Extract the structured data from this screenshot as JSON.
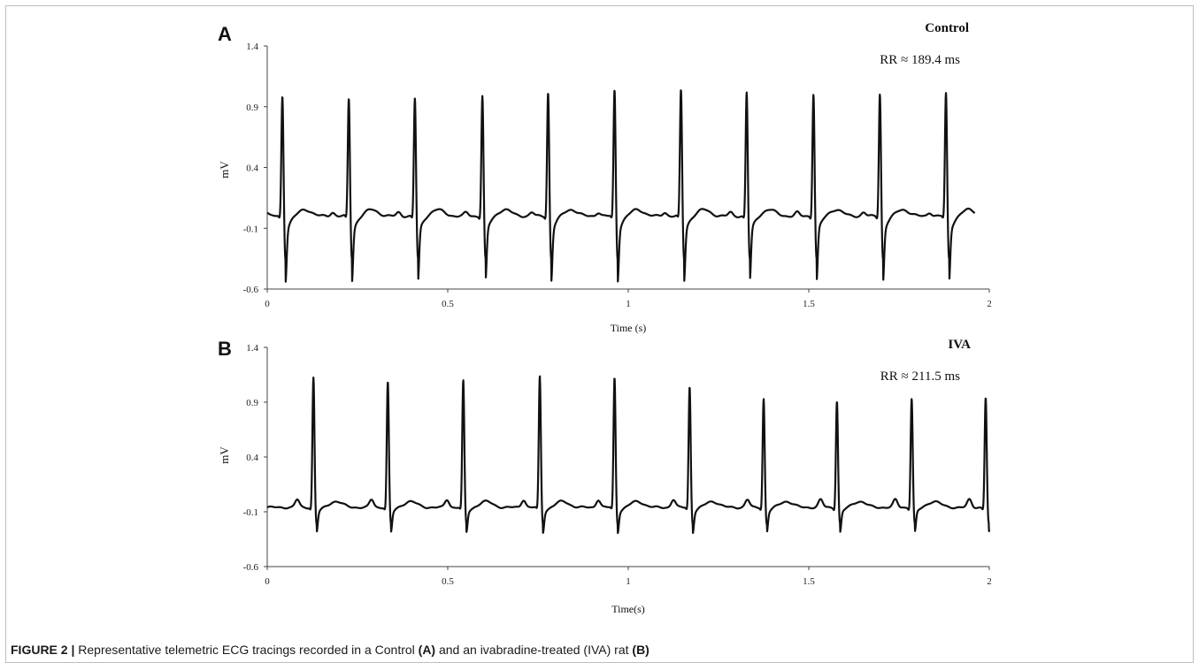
{
  "figure": {
    "label": "FIGURE 2 |",
    "caption_parts": [
      {
        "text": " Representative telemetric ECG tracings recorded in a Control ",
        "bold": false
      },
      {
        "text": "(A)",
        "bold": true
      },
      {
        "text": " and an ivabradine-treated (IVA) rat ",
        "bold": false
      },
      {
        "text": "(B)",
        "bold": true
      }
    ]
  },
  "chart_data": [
    {
      "type": "line",
      "panel_label": "A",
      "title": "Control",
      "annotation": "RR ≈ 189.4 ms",
      "xlabel": "Time  (s)",
      "ylabel": "mV",
      "xlim": [
        0,
        2
      ],
      "ylim": [
        -0.6,
        1.4
      ],
      "xticks": [
        0,
        0.5,
        1,
        1.5,
        2
      ],
      "xtick_labels": [
        "0",
        "0.5",
        "1",
        "1.5",
        "2"
      ],
      "yticks": [
        -0.6,
        -0.1,
        0.4,
        0.9,
        1.4
      ],
      "ytick_labels": [
        "-0.6",
        "-0.1",
        "0.4",
        "0.9",
        "1.4"
      ],
      "grid": false,
      "trace_end_s": 1.96,
      "baseline_mV": 0.0,
      "r_peak_times_s": [
        0.042,
        0.226,
        0.409,
        0.596,
        0.778,
        0.962,
        1.146,
        1.328,
        1.513,
        1.697,
        1.88
      ],
      "r_peak_amplitudes_mV": [
        1.0,
        0.98,
        0.98,
        1.0,
        1.03,
        1.05,
        1.05,
        1.03,
        1.02,
        1.02,
        1.02
      ],
      "s_trough_mV": -0.34,
      "color": "#111111"
    },
    {
      "type": "line",
      "panel_label": "B",
      "title": "IVA",
      "annotation": "RR ≈ 211.5 ms",
      "xlabel": "Time(s)",
      "ylabel": "mV",
      "xlim": [
        0,
        2
      ],
      "ylim": [
        -0.6,
        1.4
      ],
      "xticks": [
        0,
        0.5,
        1,
        1.5,
        2
      ],
      "xtick_labels": [
        "0",
        "0.5",
        "1",
        "1.5",
        "2"
      ],
      "yticks": [
        -0.6,
        -0.1,
        0.4,
        0.9,
        1.4
      ],
      "ytick_labels": [
        "-0.6",
        "-0.1",
        "0.4",
        "0.9",
        "1.4"
      ],
      "grid": false,
      "trace_end_s": 2.0,
      "baseline_mV": -0.06,
      "r_peak_times_s": [
        0.128,
        0.334,
        0.543,
        0.755,
        0.962,
        1.17,
        1.375,
        1.578,
        1.785,
        1.99
      ],
      "r_peak_amplitudes_mV": [
        1.13,
        1.09,
        1.1,
        1.14,
        1.13,
        1.05,
        0.94,
        0.92,
        0.94,
        0.95
      ],
      "s_trough_mV": -0.2,
      "color": "#111111"
    }
  ]
}
